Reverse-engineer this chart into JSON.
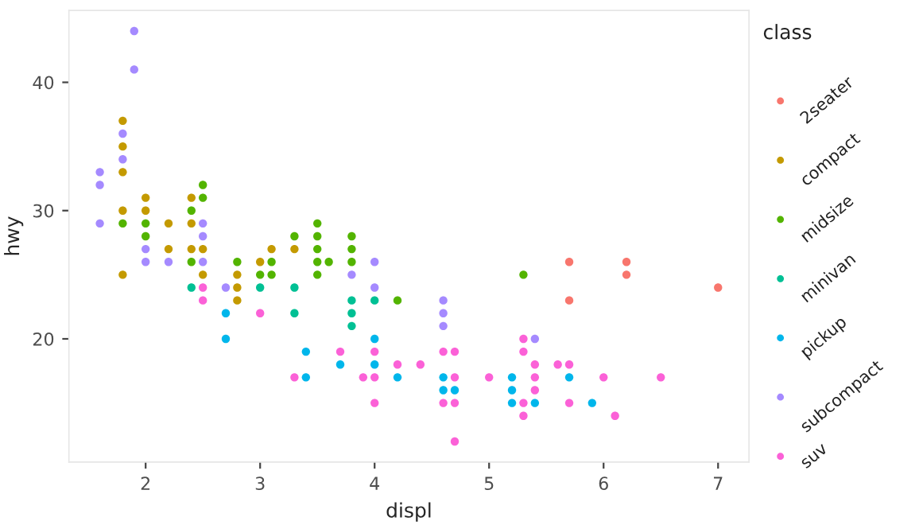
{
  "chart_data": {
    "type": "scatter",
    "xlabel": "displ",
    "ylabel": "hwy",
    "legend_title": "class",
    "xlim": [
      1.33,
      7.27
    ],
    "ylim": [
      10.4,
      45.6
    ],
    "xticks": [
      2,
      3,
      4,
      5,
      6,
      7
    ],
    "yticks": [
      20,
      30,
      40
    ],
    "grid": false,
    "legend": "right",
    "marker": "circle",
    "series": [
      {
        "name": "2seater",
        "color": "#F8766D",
        "x": [
          5.7,
          5.7,
          6.2,
          6.2,
          7.0
        ],
        "values": [
          26,
          23,
          26,
          25,
          24
        ]
      },
      {
        "name": "compact",
        "color": "#C49A00",
        "x": [
          1.8,
          1.8,
          1.8,
          1.8,
          1.8,
          2.0,
          2.0,
          2.2,
          2.2,
          2.4,
          2.4,
          2.4,
          2.5,
          2.5,
          2.8,
          2.8,
          2.8,
          3.0,
          3.1,
          3.3
        ],
        "values": [
          37,
          35,
          33,
          30,
          25,
          31,
          30,
          29,
          27,
          31,
          29,
          27,
          27,
          25,
          25,
          24,
          23,
          26,
          27,
          27
        ]
      },
      {
        "name": "midsize",
        "color": "#53B400",
        "x": [
          1.8,
          2.0,
          2.0,
          2.4,
          2.4,
          2.5,
          2.5,
          2.8,
          3.0,
          3.1,
          3.1,
          3.3,
          3.5,
          3.5,
          3.5,
          3.5,
          3.5,
          3.6,
          3.8,
          3.8,
          3.8,
          4.2,
          5.3
        ],
        "values": [
          29,
          29,
          28,
          30,
          26,
          32,
          31,
          26,
          25,
          26,
          25,
          28,
          29,
          28,
          27,
          26,
          25,
          26,
          28,
          27,
          26,
          23,
          25
        ]
      },
      {
        "name": "minivan",
        "color": "#00C094",
        "x": [
          2.4,
          3.0,
          3.3,
          3.3,
          3.8,
          3.8,
          3.8,
          4.0
        ],
        "values": [
          24,
          24,
          24,
          22,
          23,
          22,
          21,
          23
        ]
      },
      {
        "name": "pickup",
        "color": "#00B6EB",
        "x": [
          2.7,
          2.7,
          3.4,
          3.4,
          3.7,
          4.0,
          4.0,
          4.2,
          4.6,
          4.6,
          4.7,
          5.2,
          5.2,
          5.2,
          5.4,
          5.7,
          5.9
        ],
        "values": [
          22,
          20,
          19,
          17,
          18,
          20,
          18,
          17,
          17,
          16,
          16,
          17,
          16,
          15,
          15,
          17,
          15
        ]
      },
      {
        "name": "subcompact",
        "color": "#A58AFF",
        "x": [
          1.6,
          1.6,
          1.6,
          1.8,
          1.8,
          1.9,
          1.9,
          2.0,
          2.0,
          2.2,
          2.5,
          2.5,
          2.5,
          2.7,
          3.8,
          4.0,
          4.0,
          4.6,
          4.6,
          4.6,
          5.4
        ],
        "values": [
          33,
          32,
          29,
          36,
          34,
          44,
          41,
          27,
          26,
          26,
          29,
          28,
          26,
          24,
          25,
          26,
          24,
          23,
          22,
          21,
          20
        ]
      },
      {
        "name": "suv",
        "color": "#FB61D7",
        "x": [
          2.5,
          2.5,
          3.0,
          3.3,
          3.7,
          3.9,
          4.0,
          4.0,
          4.0,
          4.2,
          4.4,
          4.6,
          4.6,
          4.7,
          4.7,
          4.7,
          4.7,
          5.0,
          5.3,
          5.3,
          5.3,
          5.3,
          5.4,
          5.4,
          5.4,
          5.6,
          5.7,
          5.7,
          6.0,
          6.1,
          6.5
        ],
        "values": [
          24,
          23,
          22,
          17,
          19,
          17,
          19,
          17,
          15,
          18,
          18,
          19,
          15,
          19,
          17,
          15,
          12,
          17,
          20,
          19,
          15,
          14,
          18,
          17,
          16,
          18,
          18,
          15,
          17,
          14,
          17
        ]
      }
    ]
  }
}
